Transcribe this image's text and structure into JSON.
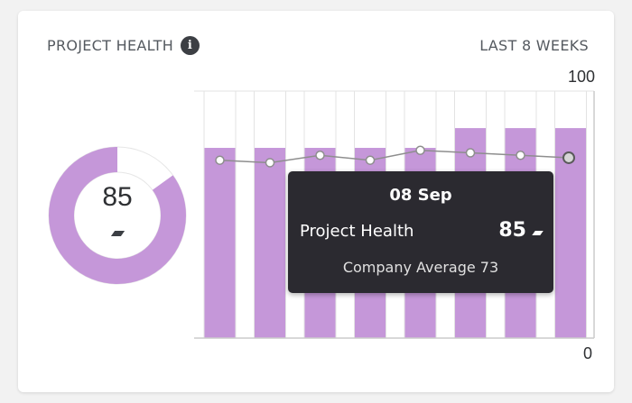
{
  "header": {
    "title": "PROJECT HEALTH",
    "info_icon": "info-icon",
    "period": "LAST 8 WEEKS"
  },
  "donut": {
    "value": 85,
    "max": 100,
    "label": "85",
    "trend_icon": "trend-flat-icon",
    "fill_color": "#c597d9",
    "track_color": "#ffffff"
  },
  "tooltip": {
    "date": "08 Sep",
    "label": "Project Health",
    "value": "85",
    "trend_icon": "trend-flat-icon",
    "average_text": "Company Average 73"
  },
  "chart_data": {
    "type": "bar",
    "ylim": [
      0,
      100
    ],
    "y_tick_labels": [
      "100",
      "0"
    ],
    "series": [
      {
        "name": "Project Health",
        "type": "bar",
        "values": [
          77,
          77,
          77,
          77,
          77,
          85,
          85,
          85
        ]
      },
      {
        "name": "Company Average",
        "type": "line",
        "values": [
          72,
          71,
          74,
          72,
          76,
          75,
          74,
          73
        ]
      }
    ],
    "colors": {
      "bar": "#c597d9",
      "line": "#8e8e8e",
      "grid": "#e3e3e3",
      "axis": "#cccccc"
    }
  }
}
